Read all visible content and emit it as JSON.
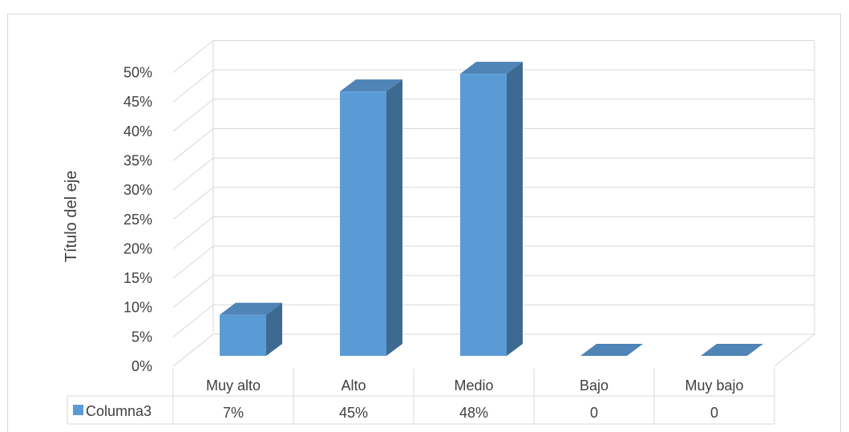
{
  "chart_data": {
    "type": "bar",
    "subtype": "3d-column-with-data-table",
    "ylabel": "Título del eje",
    "xlabel": "",
    "title": "",
    "categories": [
      "Muy alto",
      "Alto",
      "Medio",
      "Bajo",
      "Muy bajo"
    ],
    "y_ticks": [
      "0%",
      "5%",
      "10%",
      "15%",
      "20%",
      "25%",
      "30%",
      "35%",
      "40%",
      "45%",
      "50%"
    ],
    "ylim": [
      0,
      0.5
    ],
    "grid": true,
    "legend_placement": "data-table",
    "series": [
      {
        "name": "Columna3",
        "values": [
          0.07,
          0.45,
          0.48,
          0,
          0
        ],
        "table_values": [
          "7%",
          "45%",
          "48%",
          "0",
          "0"
        ],
        "color": "#5b9bd5",
        "side_color": "#3d6a92",
        "top_color": "#4e84b6"
      }
    ]
  }
}
